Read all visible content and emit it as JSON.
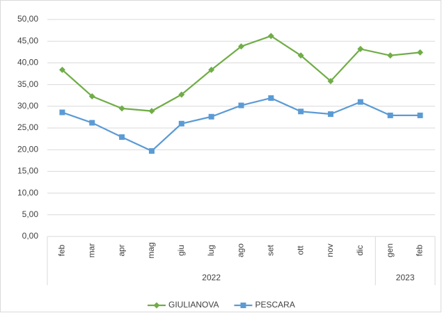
{
  "chart_data": {
    "type": "line",
    "categories": [
      "feb",
      "mar",
      "apr",
      "mag",
      "giu",
      "lug",
      "ago",
      "set",
      "ott",
      "nov",
      "dic",
      "gen",
      "feb"
    ],
    "category_groups": [
      {
        "label": "2022",
        "count": 11
      },
      {
        "label": "2023",
        "count": 2
      }
    ],
    "series": [
      {
        "name": "GIULIANOVA",
        "color": "#70ad47",
        "marker": "diamond",
        "values": [
          38.4,
          32.3,
          29.5,
          28.9,
          32.7,
          38.4,
          43.8,
          46.2,
          41.7,
          35.8,
          43.2,
          41.7,
          42.4
        ]
      },
      {
        "name": "PESCARA",
        "color": "#5b9bd5",
        "marker": "square",
        "values": [
          28.6,
          26.2,
          22.9,
          19.7,
          26.0,
          27.6,
          30.2,
          31.9,
          28.8,
          28.2,
          31.0,
          27.9,
          27.9
        ]
      }
    ],
    "ylim": [
      0,
      50
    ],
    "yticks": [
      {
        "value": 0,
        "label": "0,00"
      },
      {
        "value": 5,
        "label": "5,00"
      },
      {
        "value": 10,
        "label": "10,00"
      },
      {
        "value": 15,
        "label": "15,00"
      },
      {
        "value": 20,
        "label": "20,00"
      },
      {
        "value": 25,
        "label": "25,00"
      },
      {
        "value": 30,
        "label": "30,00"
      },
      {
        "value": 35,
        "label": "35,00"
      },
      {
        "value": 40,
        "label": "40,00"
      },
      {
        "value": 45,
        "label": "45,00"
      },
      {
        "value": 50,
        "label": "50,00"
      }
    ],
    "grid": true,
    "legend": "bottom"
  }
}
